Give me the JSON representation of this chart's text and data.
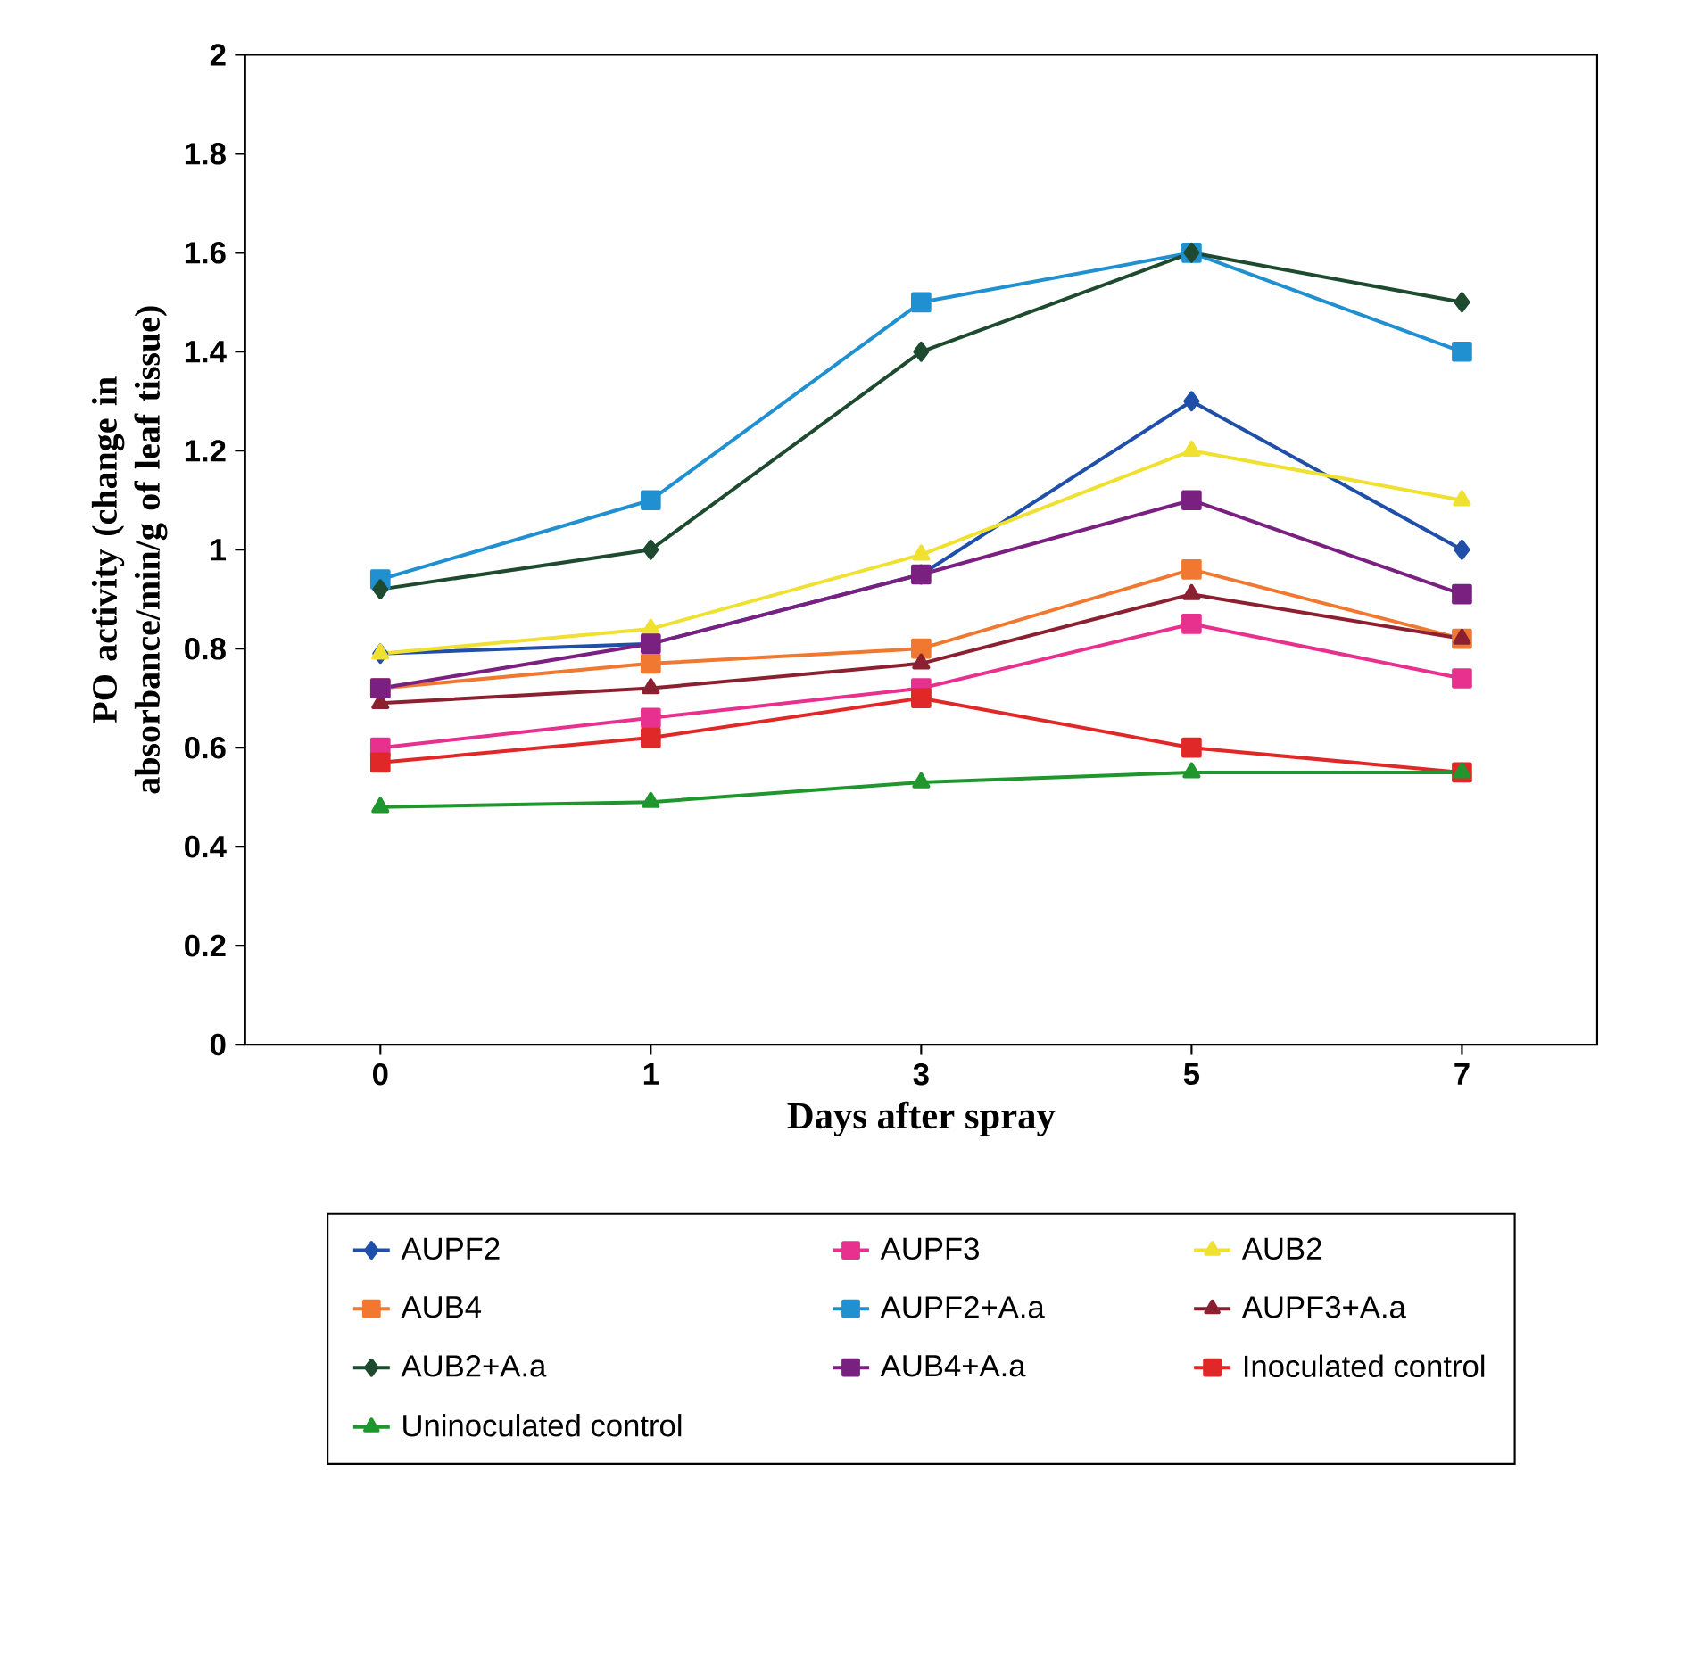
{
  "chart_data": {
    "type": "line",
    "xlabel": "Days after spray",
    "ylabel": "PO activity (change in absorbance/min/g of leaf tissue)",
    "categories": [
      "0",
      "1",
      "3",
      "5",
      "7"
    ],
    "ylim": [
      0,
      2
    ],
    "yticks": [
      0,
      {
        "value": 0.2,
        "label": "0.2"
      },
      {
        "value": 0.4,
        "label": "0.4"
      },
      {
        "value": 0.6,
        "label": "0.6"
      },
      {
        "value": 0.8,
        "label": "0.8"
      },
      1,
      {
        "value": 1.2,
        "label": "1.2"
      },
      {
        "value": 1.4,
        "label": "1.4"
      },
      {
        "value": 1.6,
        "label": "1.6"
      },
      {
        "value": 1.8,
        "label": "1.8"
      },
      2
    ],
    "grid": false,
    "legend": "bottom",
    "line_style": "solid",
    "series": [
      {
        "name": "AUPF2",
        "color": "#1f4fa8",
        "marker": "diamond",
        "values": [
          0.79,
          0.81,
          0.95,
          1.3,
          1.0
        ]
      },
      {
        "name": "AUPF3",
        "color": "#e8308f",
        "marker": "square",
        "values": [
          0.6,
          0.66,
          0.72,
          0.85,
          0.74
        ]
      },
      {
        "name": "AUB2",
        "color": "#f0e030",
        "marker": "triangle",
        "values": [
          0.79,
          0.84,
          0.99,
          1.2,
          1.1
        ]
      },
      {
        "name": "AUB4",
        "color": "#f07830",
        "marker": "square",
        "values": [
          0.72,
          0.77,
          0.8,
          0.96,
          0.82
        ]
      },
      {
        "name": "AUPF2+A.a",
        "color": "#2090d0",
        "marker": "square",
        "values": [
          0.94,
          1.1,
          1.5,
          1.6,
          1.4
        ]
      },
      {
        "name": "AUPF3+A.a",
        "color": "#8b2030",
        "marker": "triangle",
        "values": [
          0.69,
          0.72,
          0.77,
          0.91,
          0.82
        ]
      },
      {
        "name": "AUB2+A.a",
        "color": "#1e4a30",
        "marker": "diamond",
        "values": [
          0.92,
          1.0,
          1.4,
          1.6,
          1.5
        ]
      },
      {
        "name": "AUB4+A.a",
        "color": "#7a2080",
        "marker": "square",
        "values": [
          0.72,
          0.81,
          0.95,
          1.1,
          0.91
        ]
      },
      {
        "name": "Inoculated control",
        "color": "#e02828",
        "marker": "square",
        "values": [
          0.57,
          0.62,
          0.7,
          0.6,
          0.55
        ]
      },
      {
        "name": "Uninoculated control",
        "color": "#20962e",
        "marker": "triangle",
        "values": [
          0.48,
          0.49,
          0.53,
          0.55,
          0.55
        ]
      }
    ]
  }
}
